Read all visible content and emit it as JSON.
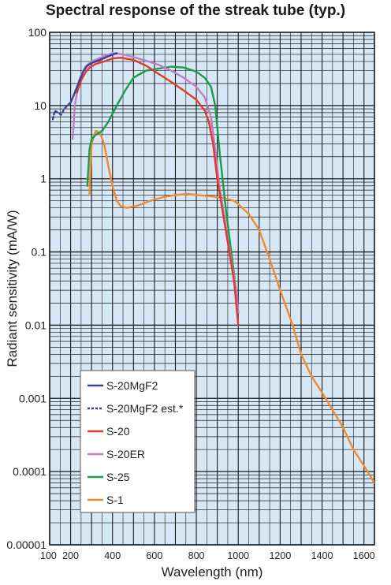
{
  "chart_data": {
    "type": "line",
    "title": "Spectral response of the streak tube (typ.)",
    "xlabel": "Wavelength (nm)",
    "ylabel": "Radiant sensitivity (mA/W)",
    "xlim": [
      100,
      1650
    ],
    "ylim": [
      1e-05,
      100
    ],
    "y_scale": "log",
    "grid": true,
    "legend_position": "bottom-left",
    "x_ticks": [
      {
        "value": 100,
        "label": "100"
      },
      {
        "value": 200,
        "label": "200"
      },
      {
        "value": 400,
        "label": "400"
      },
      {
        "value": 600,
        "label": "600"
      },
      {
        "value": 800,
        "label": "800"
      },
      {
        "value": 1000,
        "label": "1000"
      },
      {
        "value": 1200,
        "label": "1200"
      },
      {
        "value": 1400,
        "label": "1400"
      },
      {
        "value": 1600,
        "label": "1600"
      }
    ],
    "y_ticks": [
      {
        "value": 100,
        "label": "100"
      },
      {
        "value": 10,
        "label": "10"
      },
      {
        "value": 1,
        "label": "1"
      },
      {
        "value": 0.1,
        "label": "0.1"
      },
      {
        "value": 0.01,
        "label": "0.01"
      },
      {
        "value": 0.001,
        "label": "0.001"
      },
      {
        "value": 0.0001,
        "label": "0.0001"
      },
      {
        "value": 1e-05,
        "label": "0.00001"
      }
    ],
    "series": [
      {
        "name": "S-20MgF2",
        "color": "#3d3f8f",
        "dash": false,
        "x": [
          200,
          220,
          240,
          260,
          280,
          300,
          340,
          380,
          420
        ],
        "y": [
          11,
          15,
          21,
          29,
          35,
          38,
          42,
          47,
          52
        ]
      },
      {
        "name": "S-20MgF2 est.*",
        "color": "#3d3f8f",
        "dash": true,
        "x": [
          115,
          125,
          140,
          155,
          170,
          185,
          200
        ],
        "y": [
          6.5,
          8.5,
          8.0,
          7.5,
          9,
          10,
          11
        ]
      },
      {
        "name": "S-20",
        "color": "#e03a2f",
        "dash": false,
        "x": [
          230,
          250,
          270,
          290,
          320,
          360,
          400,
          440,
          500,
          560,
          620,
          680,
          740,
          800,
          840,
          860,
          880,
          900,
          940,
          980,
          1000
        ],
        "y": [
          15,
          22,
          28,
          33,
          37,
          40,
          44,
          45,
          42,
          35,
          27,
          21,
          16,
          12,
          8.5,
          6,
          3,
          1,
          0.2,
          0.04,
          0.01
        ]
      },
      {
        "name": "S-20ER",
        "color": "#c07dc6",
        "dash": false,
        "x": [
          210,
          220,
          240,
          270,
          300,
          350,
          400,
          450,
          500,
          560,
          620,
          680,
          740,
          800,
          840,
          870,
          890,
          910,
          950,
          990,
          1000
        ],
        "y": [
          3.5,
          10,
          22,
          34,
          40,
          46,
          52,
          50,
          46,
          41,
          36,
          30,
          24,
          18,
          13,
          7,
          2.5,
          0.8,
          0.15,
          0.03,
          0.015
        ]
      },
      {
        "name": "S-25",
        "color": "#1d9a48",
        "dash": false,
        "x": [
          280,
          290,
          300,
          320,
          350,
          380,
          420,
          460,
          500,
          560,
          620,
          680,
          740,
          800,
          840,
          870,
          890,
          910,
          940,
          980,
          1000
        ],
        "y": [
          0.8,
          2.5,
          3.5,
          4,
          4.5,
          6,
          10,
          16,
          24,
          30,
          32,
          34,
          33,
          29,
          24,
          18,
          10,
          2.5,
          0.4,
          0.05,
          0.015
        ]
      },
      {
        "name": "S-1",
        "color": "#ef8a2e",
        "dash": false,
        "x": [
          290,
          300,
          320,
          340,
          360,
          380,
          400,
          420,
          440,
          470,
          520,
          580,
          640,
          700,
          760,
          800,
          860,
          920,
          980,
          1000,
          1050,
          1100,
          1150,
          1200,
          1260,
          1300,
          1350,
          1400,
          1450,
          1500,
          1550,
          1600,
          1650
        ],
        "y": [
          0.6,
          3,
          4.5,
          4.2,
          3,
          1.5,
          0.8,
          0.5,
          0.42,
          0.4,
          0.43,
          0.5,
          0.56,
          0.6,
          0.62,
          0.6,
          0.58,
          0.55,
          0.5,
          0.45,
          0.33,
          0.2,
          0.08,
          0.03,
          0.01,
          0.004,
          0.002,
          0.0012,
          0.0007,
          0.0004,
          0.0002,
          0.00012,
          7e-05
        ]
      }
    ]
  }
}
